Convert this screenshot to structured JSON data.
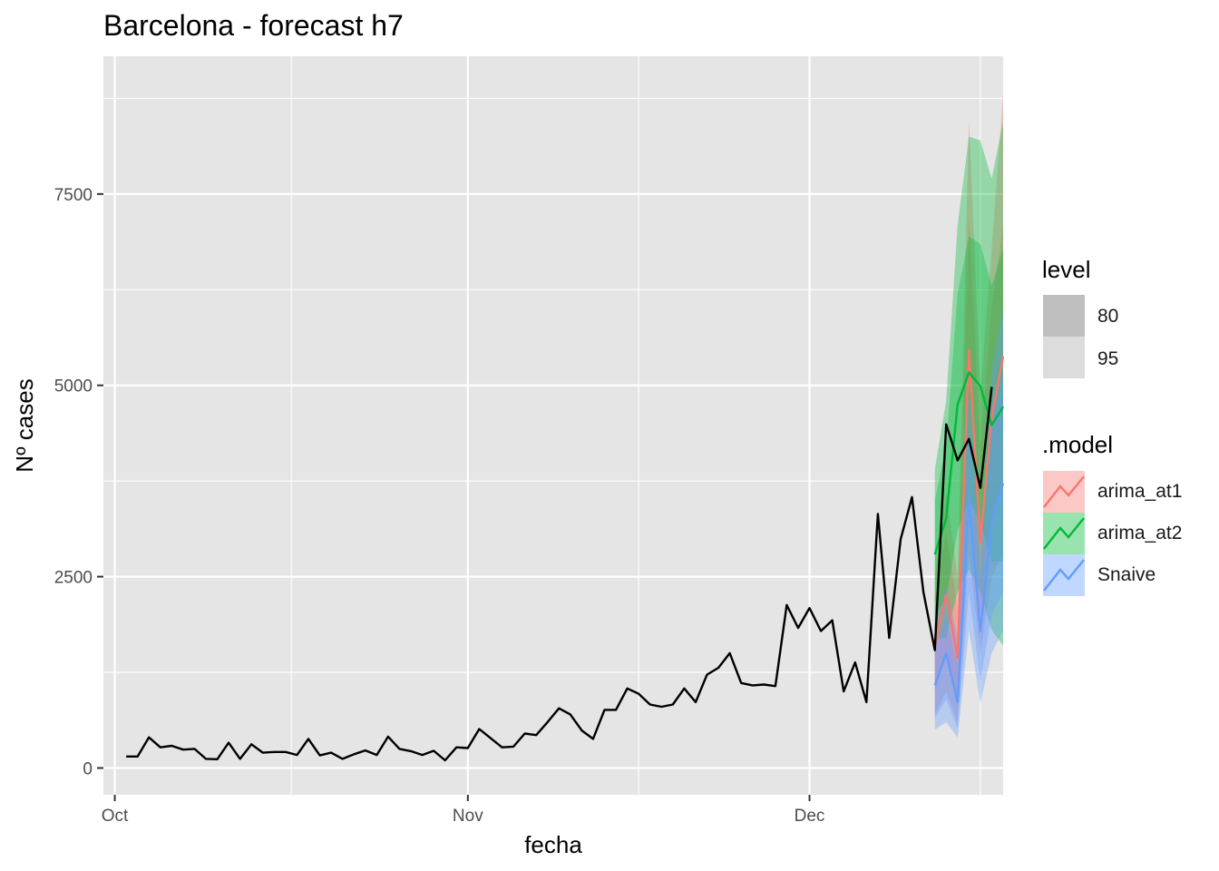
{
  "chart_data": {
    "type": "line",
    "title": "Barcelona - forecast h7",
    "xlabel": "fecha",
    "ylabel": "Nº cases",
    "xlim": [
      "2020-09-30",
      "2020-12-18"
    ],
    "ylim": [
      -350,
      9300
    ],
    "x_ticks": [
      {
        "date": "2020-10-01",
        "label": "Oct"
      },
      {
        "date": "2020-11-01",
        "label": "Nov"
      },
      {
        "date": "2020-12-01",
        "label": "Dec"
      }
    ],
    "y_ticks": [
      0,
      2500,
      5000,
      7500
    ],
    "grid": true,
    "legend_position": "right",
    "colors": {
      "panel": "#e5e5e5",
      "grid": "#ffffff",
      "actual": "#000000",
      "arima_at1": "#f8766d",
      "arima_at2": "#00ba38",
      "Snaive": "#619cff"
    },
    "actual": {
      "start_date": "2020-10-02",
      "values": [
        150,
        150,
        400,
        270,
        290,
        240,
        250,
        120,
        115,
        330,
        120,
        310,
        200,
        210,
        210,
        170,
        380,
        165,
        200,
        120,
        180,
        230,
        170,
        410,
        250,
        220,
        170,
        225,
        100,
        270,
        260,
        510,
        390,
        270,
        280,
        450,
        430,
        600,
        780,
        700,
        490,
        380,
        760,
        760,
        1040,
        970,
        830,
        800,
        830,
        1040,
        860,
        1220,
        1310,
        1500,
        1110,
        1080,
        1090,
        1070,
        2130,
        1830,
        2090,
        1790,
        1930,
        1000,
        1380,
        860,
        3320,
        1700,
        2990,
        3540,
        2300,
        1540,
        4490,
        4020,
        4300,
        3660,
        4980
      ]
    },
    "forecast_start_date": "2020-12-12",
    "series": [
      {
        "name": "arima_at1",
        "values": [
          1580,
          2270,
          1440,
          5460,
          2950,
          4580,
          5380
        ],
        "lo80": [
          1000,
          1450,
          900,
          3700,
          2000,
          3200,
          3700
        ],
        "hi80": [
          2200,
          3100,
          2100,
          7200,
          4200,
          6000,
          7100
        ],
        "lo95": [
          700,
          1000,
          600,
          2800,
          1500,
          2500,
          2800
        ],
        "hi95": [
          2500,
          3600,
          2500,
          8500,
          4900,
          6800,
          8800
        ]
      },
      {
        "name": "arima_at2",
        "values": [
          2790,
          3260,
          4750,
          5170,
          4990,
          4480,
          4720
        ],
        "lo80": [
          2000,
          2200,
          3100,
          3500,
          3200,
          2700,
          2700
        ],
        "hi80": [
          3500,
          4200,
          6200,
          6950,
          6850,
          6300,
          6800
        ],
        "lo95": [
          1700,
          1700,
          2300,
          2600,
          2300,
          1800,
          1600
        ],
        "hi95": [
          3900,
          4800,
          7100,
          8250,
          8200,
          7700,
          8450
        ]
      },
      {
        "name": "Snaive",
        "values": [
          1080,
          1500,
          860,
          3500,
          1790,
          3200,
          3720
        ],
        "lo80": [
          650,
          900,
          520,
          2300,
          1150,
          2000,
          2300
        ],
        "hi80": [
          1550,
          2000,
          1350,
          4500,
          2500,
          4500,
          5100
        ],
        "lo95": [
          500,
          600,
          400,
          1800,
          850,
          1500,
          1800
        ],
        "hi95": [
          1900,
          2400,
          1700,
          5000,
          2800,
          5200,
          6000
        ]
      }
    ],
    "legend": {
      "level_title": "level",
      "level_items": [
        "80",
        "95"
      ],
      "model_title": ".model",
      "model_items": [
        "arima_at1",
        "arima_at2",
        "Snaive"
      ]
    }
  }
}
